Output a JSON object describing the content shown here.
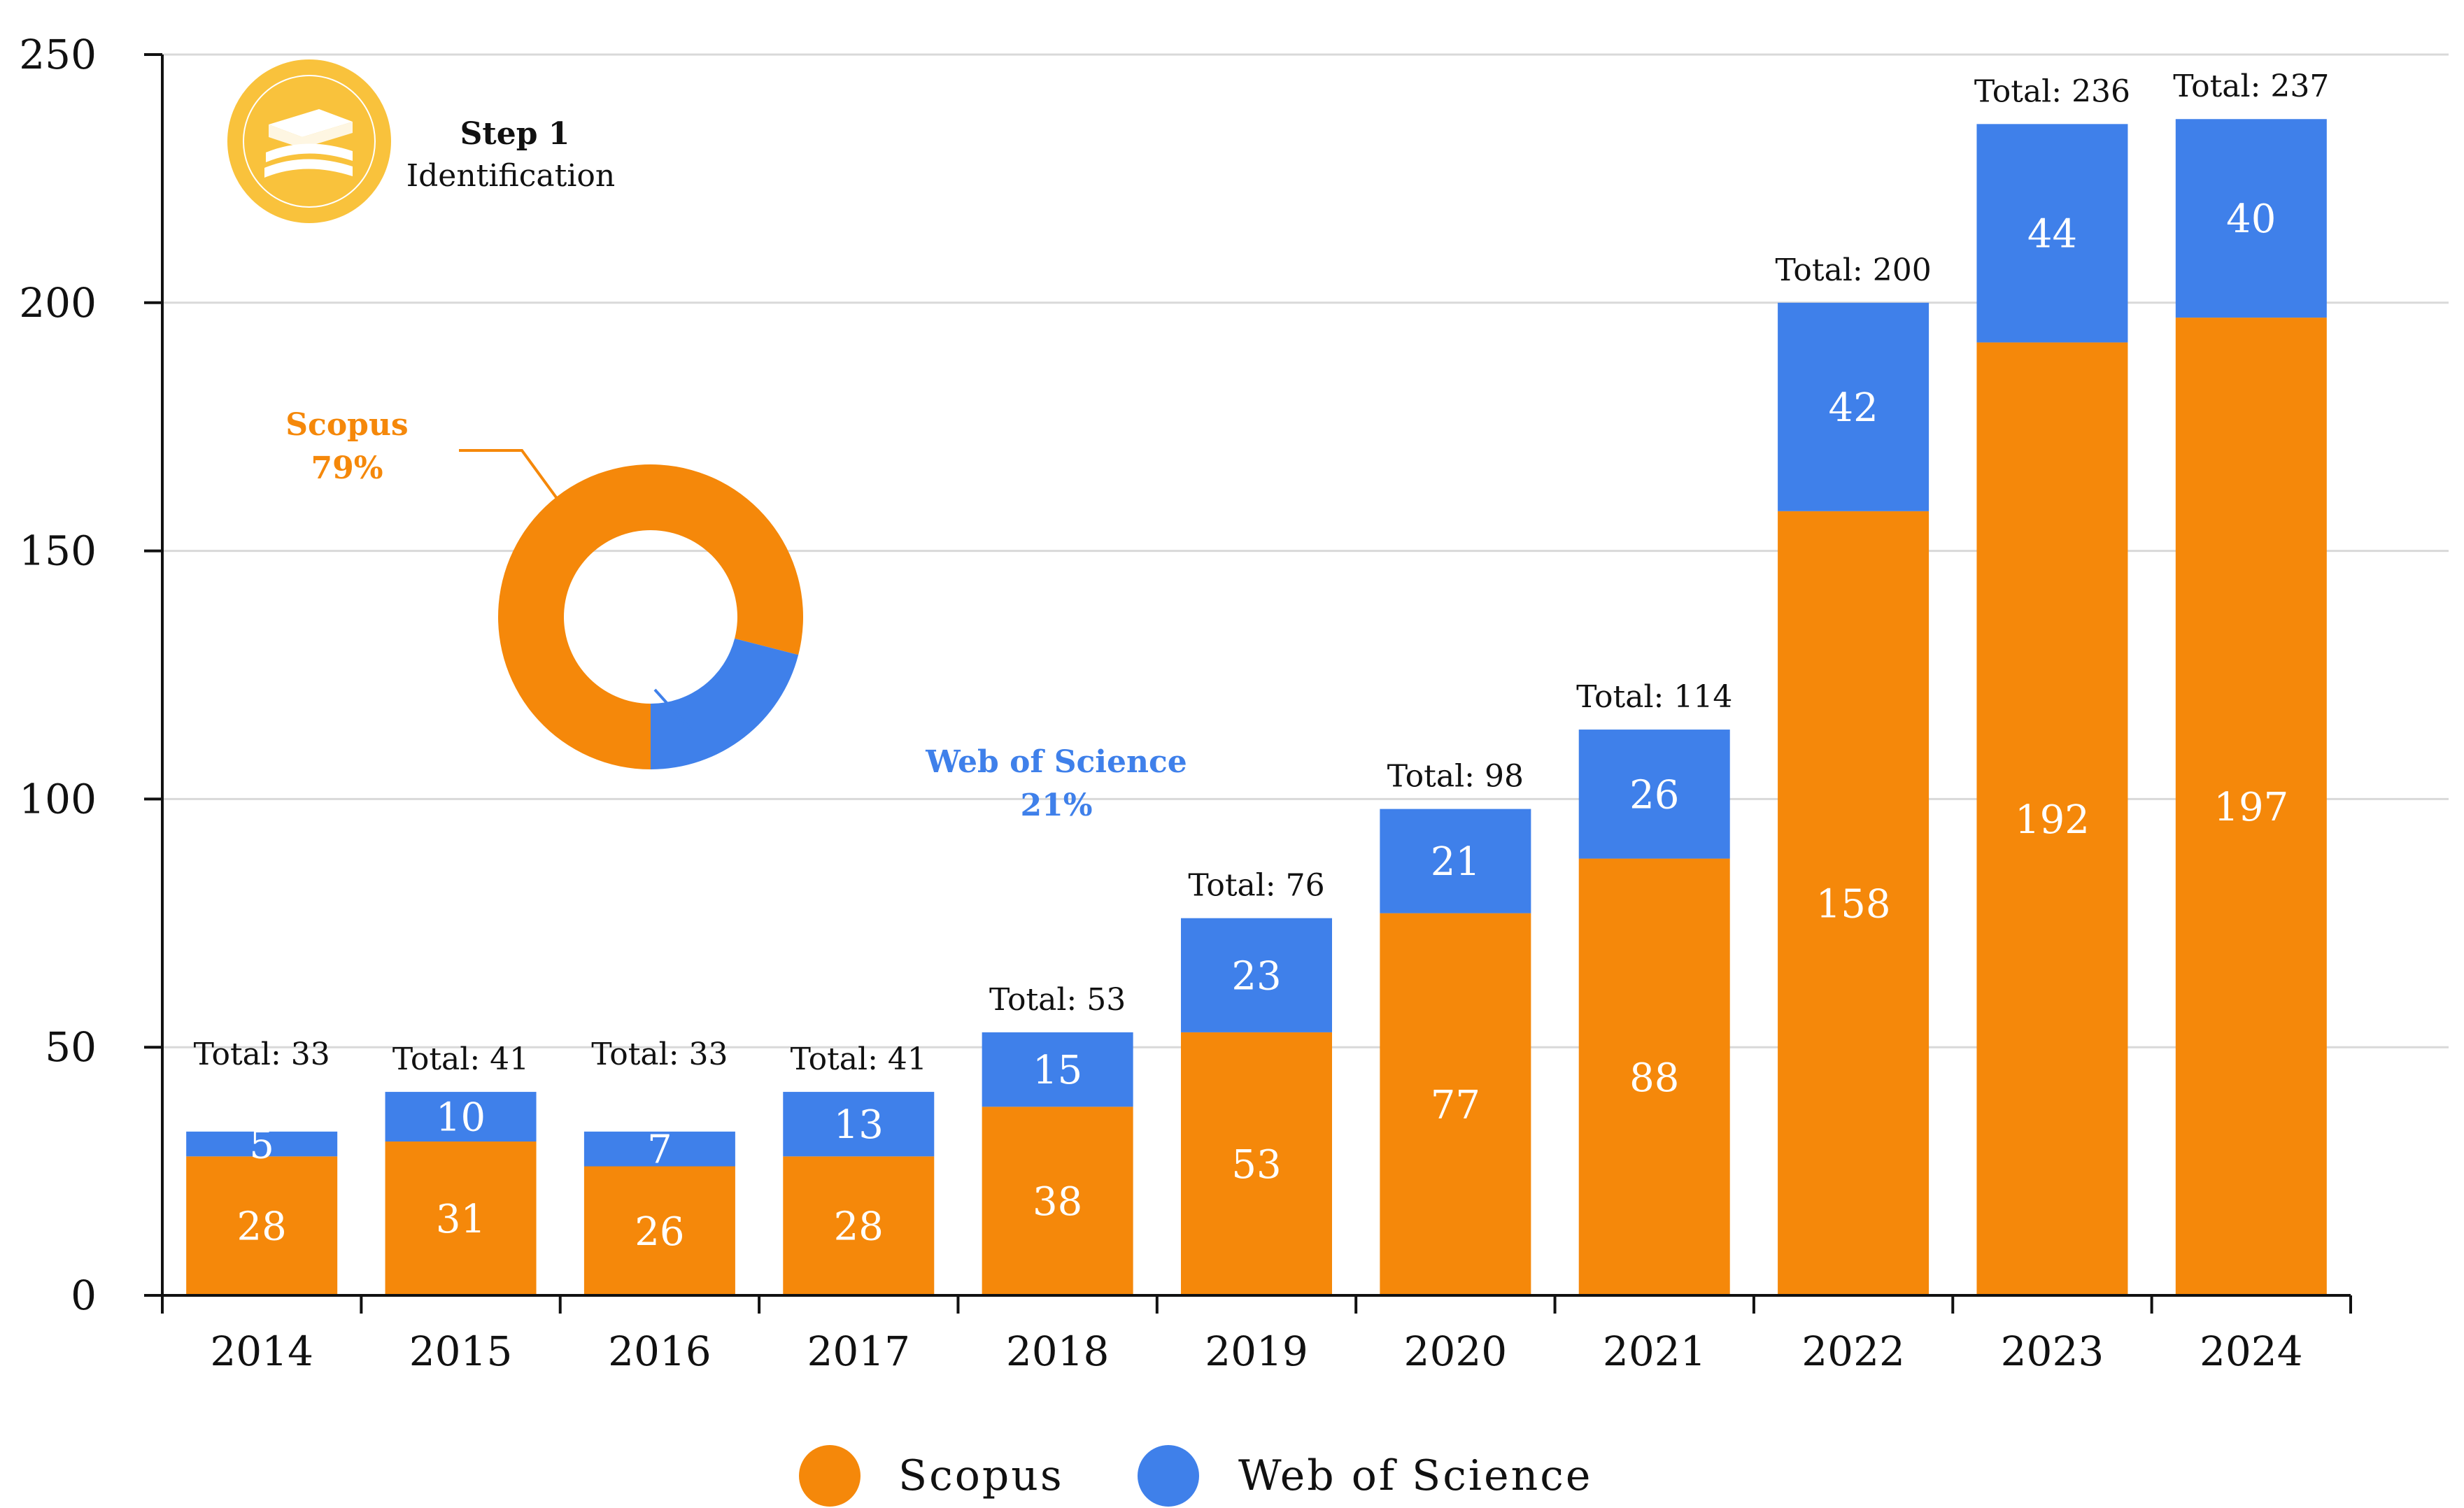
{
  "colors": {
    "scopus": "#F5880A",
    "wos": "#3F80EA",
    "grid": "#d9d9d9",
    "axis": "#111111",
    "badge": "#F9C23C"
  },
  "step": {
    "title": "Step 1",
    "subtitle": "Identification",
    "icon": "books-icon"
  },
  "donut": {
    "scopus_label": "Scopus",
    "scopus_pct_label": "79%",
    "scopus_pct": 79,
    "wos_label": "Web of Science",
    "wos_pct_label": "21%",
    "wos_pct": 21
  },
  "legend": {
    "scopus": "Scopus",
    "wos": "Web of Science"
  },
  "chart_data": {
    "type": "bar",
    "stacked": true,
    "title": "",
    "xlabel": "",
    "ylabel": "",
    "ylim": [
      0,
      250
    ],
    "yticks": [
      0,
      50,
      100,
      150,
      200,
      250
    ],
    "grid": true,
    "categories": [
      "2014",
      "2015",
      "2016",
      "2017",
      "2018",
      "2019",
      "2020",
      "2021",
      "2022",
      "2023",
      "2024"
    ],
    "series": [
      {
        "name": "Scopus",
        "values": [
          28,
          31,
          26,
          28,
          38,
          53,
          77,
          88,
          158,
          192,
          197
        ]
      },
      {
        "name": "Web of Science",
        "values": [
          5,
          10,
          7,
          13,
          15,
          23,
          21,
          26,
          42,
          44,
          40
        ]
      }
    ],
    "totals": [
      "Total: 33",
      "Total: 41",
      "Total: 33",
      "Total: 41",
      "Total: 53",
      "Total: 76",
      "Total: 98",
      "Total: 114",
      "Total: 200",
      "Total: 236",
      "Total: 237"
    ],
    "legend_position": "bottom-center"
  }
}
